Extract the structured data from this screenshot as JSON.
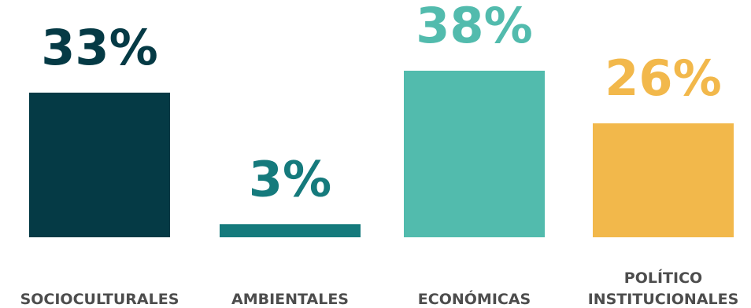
{
  "chart_data": {
    "type": "bar",
    "categories": [
      [
        "SOCIOCULTURALES"
      ],
      [
        "AMBIENTALES"
      ],
      [
        "ECONÓMICAS"
      ],
      [
        "POLÍTICO",
        "INSTITUCIONALES"
      ]
    ],
    "values": [
      33,
      3,
      38,
      26
    ],
    "value_labels": [
      "33%",
      "3%",
      "38%",
      "26%"
    ],
    "colors": [
      "#053a45",
      "#157a7c",
      "#52bbad",
      "#f2b84b"
    ],
    "ylim": [
      0,
      40
    ],
    "title": "",
    "xlabel": "",
    "ylabel": "",
    "grid": false,
    "legend": "none"
  }
}
